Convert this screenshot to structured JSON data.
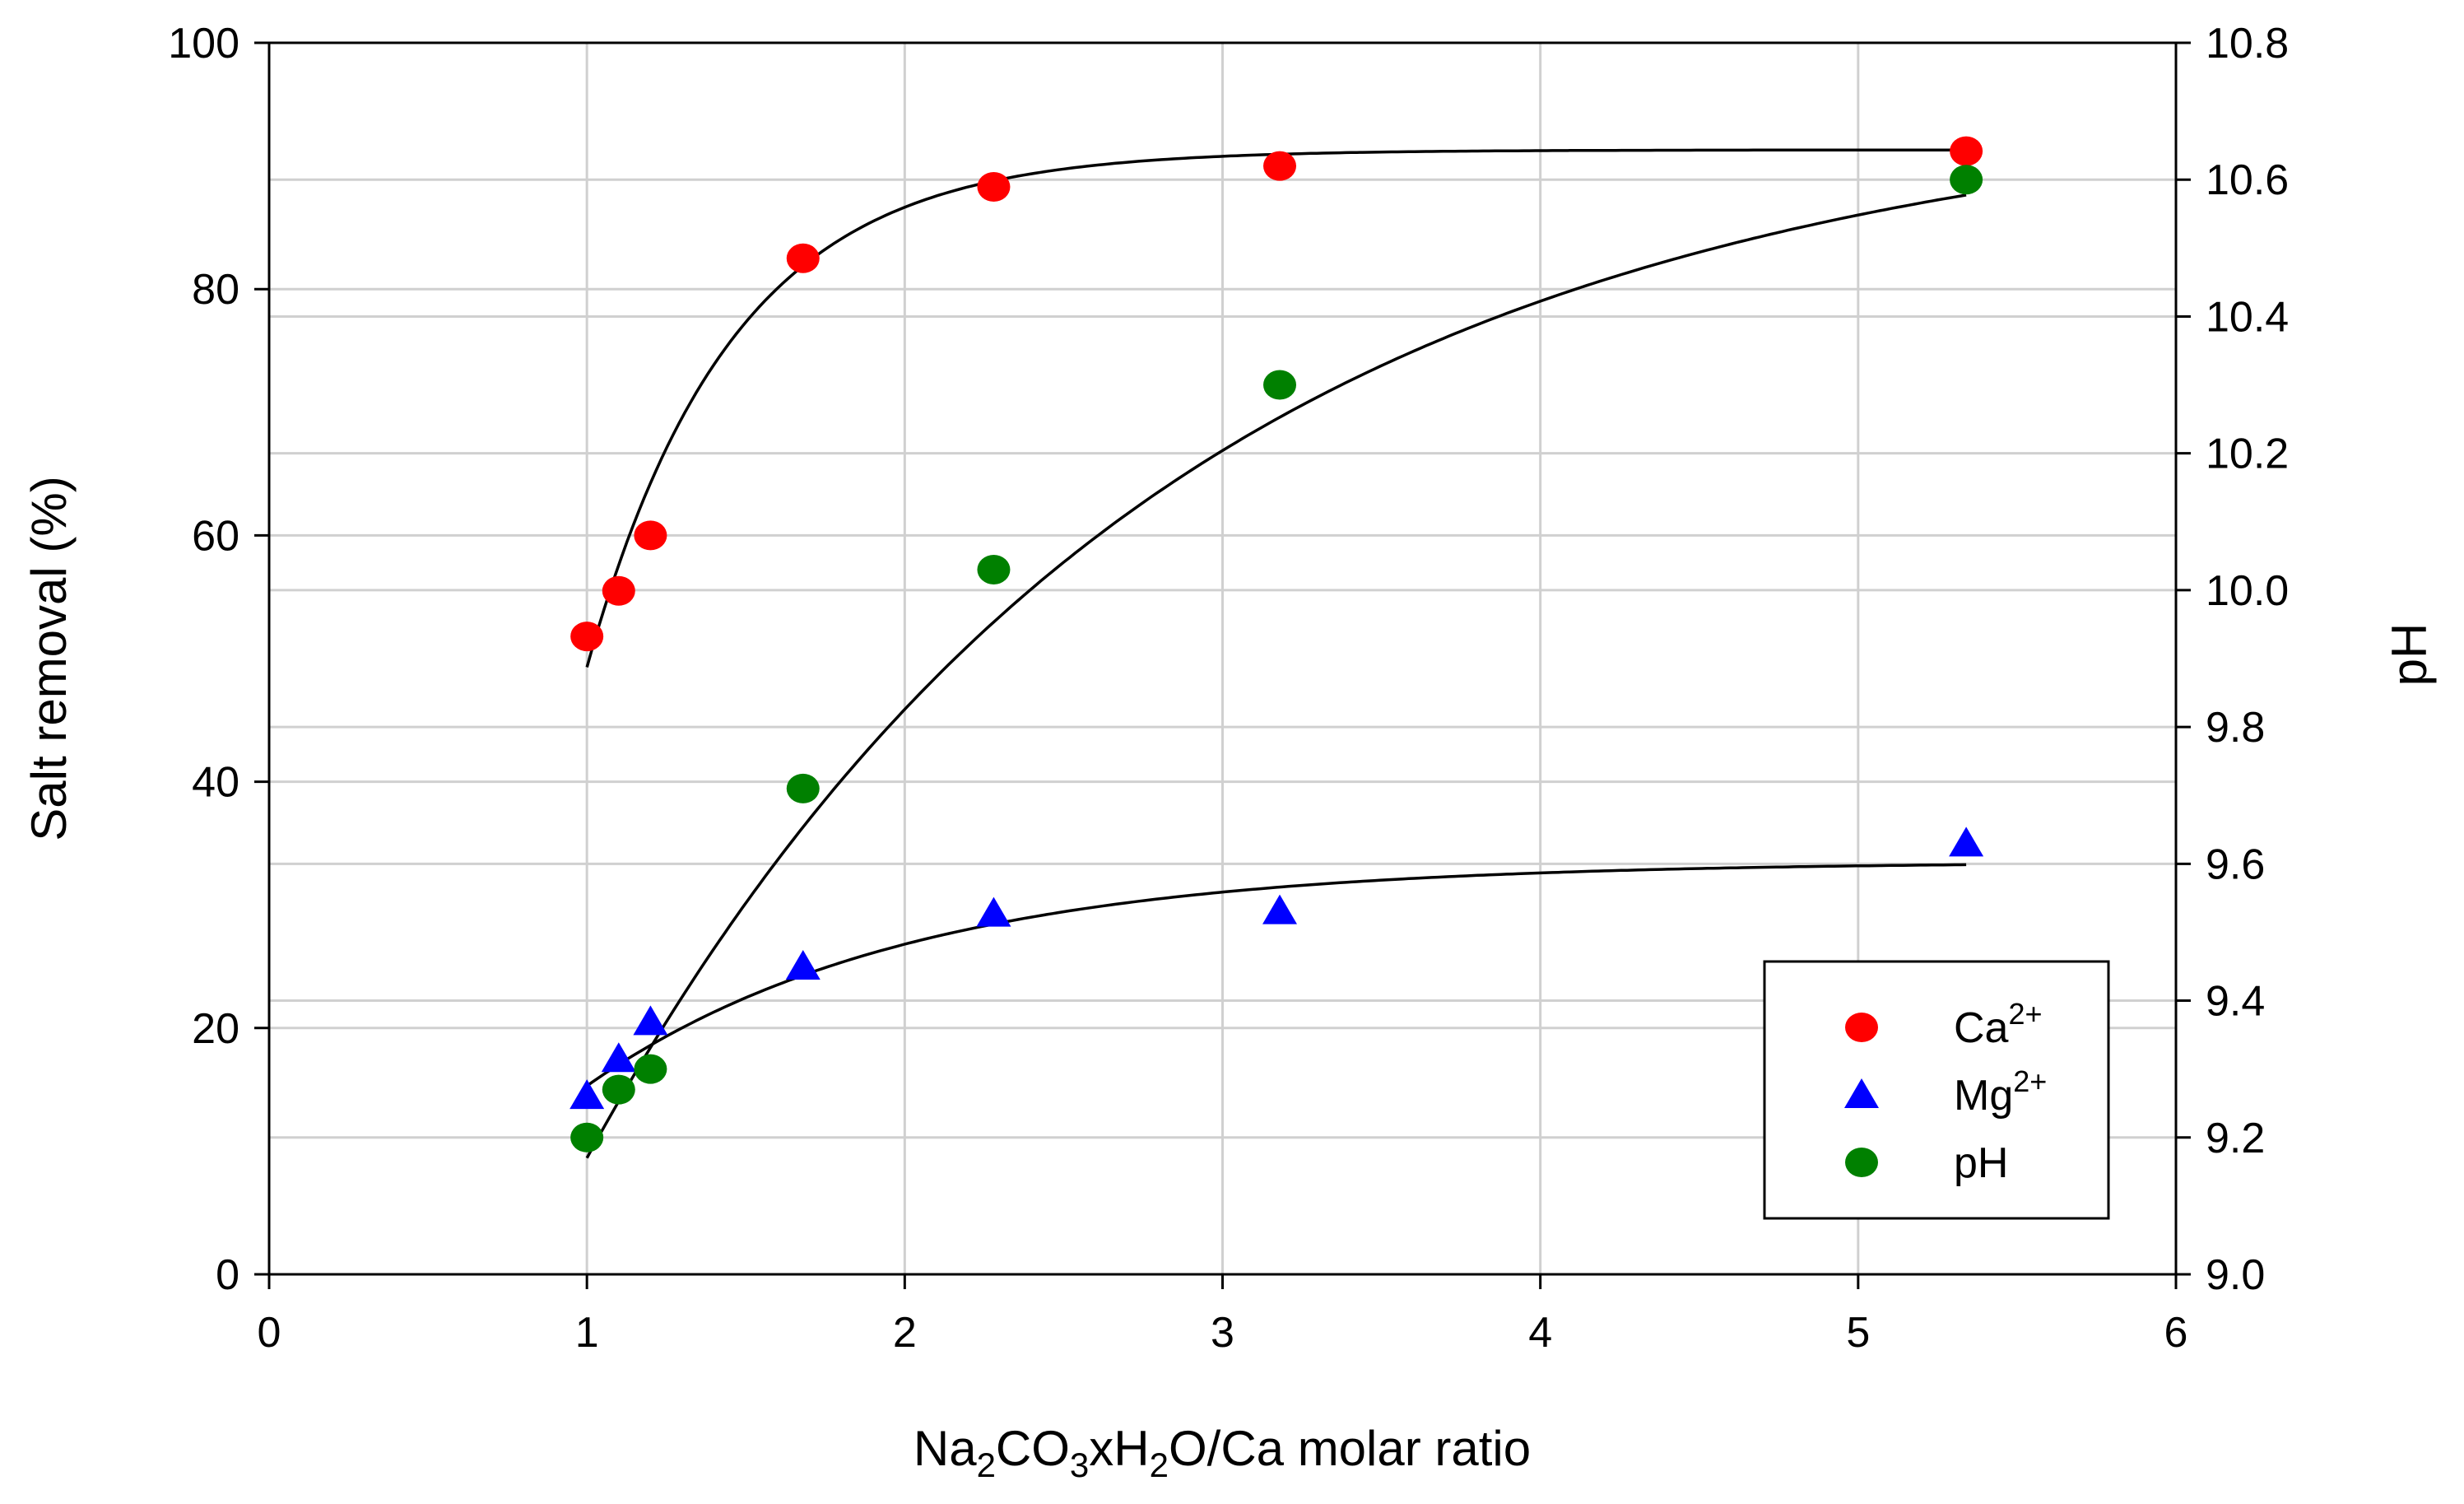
{
  "chart_data": {
    "type": "scatter",
    "title": "",
    "xlabel": {
      "base": "Na",
      "s1": "2",
      "mid1": "CO",
      "s2": "3",
      "mid2": "xH",
      "s3": "2",
      "tail": "O/Ca molar ratio"
    },
    "ylabel": "Salt removal (%)",
    "y2label": "pH",
    "xlim": [
      0,
      6
    ],
    "ylim": [
      0,
      100
    ],
    "y2lim": [
      9.0,
      10.8
    ],
    "xticks": [
      "0",
      "1",
      "2",
      "3",
      "4",
      "5",
      "6"
    ],
    "yticks": [
      "0",
      "20",
      "40",
      "60",
      "80",
      "100"
    ],
    "y2ticks": [
      "9.0",
      "9.2",
      "9.4",
      "9.6",
      "9.8",
      "10.0",
      "10.2",
      "10.4",
      "10.6",
      "10.8"
    ],
    "grid": true,
    "legend_position": "bottom-right",
    "series": [
      {
        "name": "Ca",
        "sup": "2+",
        "marker": "circle",
        "color": "#ff0000",
        "axis": "left",
        "x": [
          1.0,
          1.1,
          1.2,
          1.68,
          2.28,
          3.18,
          5.34
        ],
        "y": [
          51.8,
          55.5,
          60.0,
          82.5,
          88.3,
          90.0,
          91.2
        ],
        "fit": {
          "model": "exp_rise",
          "xmin": 1.0,
          "xmax": 5.34,
          "a": 91.3,
          "b": 42.0,
          "k": 2.2
        }
      },
      {
        "name": "Mg",
        "sup": "2+",
        "marker": "triangle",
        "color": "#0000ff",
        "axis": "left",
        "x": [
          1.0,
          1.1,
          1.2,
          1.68,
          2.28,
          3.18,
          5.34
        ],
        "y": [
          14.5,
          17.5,
          20.5,
          25.0,
          29.3,
          29.5,
          35.0
        ],
        "fit": {
          "model": "exp_rise",
          "xmin": 1.0,
          "xmax": 5.34,
          "a": 33.5,
          "b": 18.2,
          "k": 1.0
        }
      },
      {
        "name": "pH",
        "sup": "",
        "marker": "circle",
        "color": "#008000",
        "axis": "right",
        "x": [
          1.0,
          1.1,
          1.2,
          1.68,
          2.28,
          3.18,
          5.34
        ],
        "y": [
          9.2,
          9.27,
          9.3,
          9.71,
          10.03,
          10.3,
          10.6
        ],
        "fit": {
          "model": "exp_rise",
          "xmin": 1.0,
          "xmax": 5.34,
          "a": 10.72,
          "b": 1.55,
          "k": 0.55
        }
      }
    ]
  }
}
